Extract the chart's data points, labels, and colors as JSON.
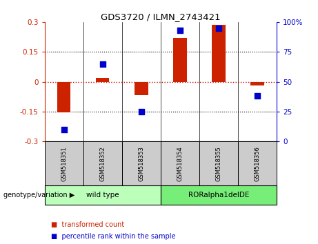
{
  "title": "GDS3720 / ILMN_2743421",
  "samples": [
    "GSM518351",
    "GSM518352",
    "GSM518353",
    "GSM518354",
    "GSM518355",
    "GSM518356"
  ],
  "transformed_count": [
    -0.155,
    0.018,
    -0.068,
    0.22,
    0.285,
    -0.018
  ],
  "percentile_rank": [
    10,
    65,
    25,
    93,
    95,
    38
  ],
  "ylim_left": [
    -0.3,
    0.3
  ],
  "ylim_right": [
    0,
    100
  ],
  "yticks_left": [
    -0.3,
    -0.15,
    0,
    0.15,
    0.3
  ],
  "yticks_right": [
    0,
    25,
    50,
    75,
    100
  ],
  "yticklabels_left": [
    "-0.3",
    "-0.15",
    "0",
    "0.15",
    "0.3"
  ],
  "yticklabels_right": [
    "0",
    "25",
    "50",
    "75",
    "100%"
  ],
  "bar_color": "#cc2200",
  "dot_color": "#0000cc",
  "group_labels": [
    "wild type",
    "RORalpha1delDE"
  ],
  "group_ranges": [
    [
      0,
      3
    ],
    [
      3,
      6
    ]
  ],
  "group_colors": [
    "#bbffbb",
    "#77ee77"
  ],
  "genotype_label": "genotype/variation",
  "legend_bar_label": "transformed count",
  "legend_dot_label": "percentile rank within the sample",
  "bar_width": 0.35,
  "dot_size": 30,
  "hline_color": "#cc0000",
  "grid_color": "#aaaaaa"
}
